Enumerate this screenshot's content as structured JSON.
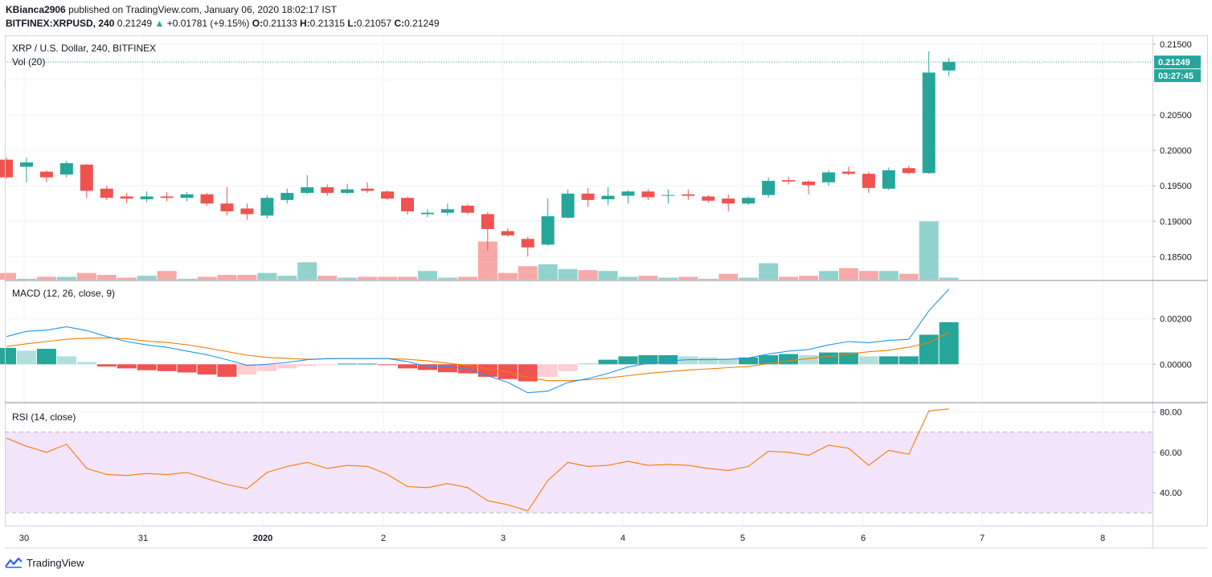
{
  "header": {
    "author": "KBianca2906",
    "published_text": "published on TradingView.com, January 06, 2020 18:02:17 IST",
    "symbol": "BITFINEX:XRPUSD, 240",
    "last": "0.21249",
    "change_arrow": "▲",
    "change": "+0.01781 (+9.15%)",
    "open_label": "O:",
    "open": "0.21133",
    "high_label": "H:",
    "high": "0.21315",
    "low_label": "L:",
    "low": "0.21057",
    "close_label": "C:",
    "close": "0.21249"
  },
  "footer": {
    "brand": "TradingView"
  },
  "colors": {
    "up": "#26a69a",
    "down": "#ef5350",
    "grid": "#f0f3fa",
    "rsi_band": "#f3e5fc",
    "macd_line": "#2196f3",
    "signal_line": "#f57c00"
  },
  "chart_data": [
    {
      "type": "candlestick",
      "title": "XRP / U.S. Dollar, 240, BITFINEX",
      "volume_label": "Vol (20)",
      "ylim": [
        0.1822,
        0.2158
      ],
      "y_ticks": [
        "0.21500",
        "0.20500",
        "0.20000",
        "0.19500",
        "0.19000",
        "0.18500"
      ],
      "y_tick_values": [
        0.215,
        0.205,
        0.2,
        0.195,
        0.19,
        0.185
      ],
      "last_price_label": "0.21249",
      "countdown_label": "03:27:45",
      "x_labels": [
        "30",
        "31",
        "2020",
        "2",
        "3",
        "4",
        "5",
        "6",
        "7",
        "8"
      ],
      "ohlc": [
        [
          0.1987,
          0.199,
          0.196,
          0.1962
        ],
        [
          0.1977,
          0.199,
          0.1955,
          0.1983
        ],
        [
          0.197,
          0.1972,
          0.1955,
          0.1962
        ],
        [
          0.1966,
          0.1985,
          0.1962,
          0.1982
        ],
        [
          0.198,
          0.1981,
          0.1933,
          0.1943
        ],
        [
          0.1946,
          0.195,
          0.193,
          0.1933
        ],
        [
          0.1935,
          0.194,
          0.1925,
          0.1932
        ],
        [
          0.1931,
          0.1942,
          0.1927,
          0.1935
        ],
        [
          0.1935,
          0.1941,
          0.1928,
          0.1933
        ],
        [
          0.1933,
          0.1941,
          0.1928,
          0.1938
        ],
        [
          0.1938,
          0.194,
          0.1922,
          0.1925
        ],
        [
          0.1925,
          0.1948,
          0.1908,
          0.1914
        ],
        [
          0.1918,
          0.1925,
          0.1902,
          0.191
        ],
        [
          0.1908,
          0.1937,
          0.1904,
          0.1933
        ],
        [
          0.193,
          0.1946,
          0.1925,
          0.194
        ],
        [
          0.194,
          0.1965,
          0.1938,
          0.1948
        ],
        [
          0.1948,
          0.1952,
          0.1936,
          0.194
        ],
        [
          0.194,
          0.1953,
          0.1938,
          0.1945
        ],
        [
          0.1946,
          0.1955,
          0.194,
          0.1943
        ],
        [
          0.1942,
          0.1944,
          0.193,
          0.1932
        ],
        [
          0.1933,
          0.1935,
          0.1909,
          0.1914
        ],
        [
          0.191,
          0.1917,
          0.1906,
          0.1912
        ],
        [
          0.1912,
          0.1925,
          0.1908,
          0.1917
        ],
        [
          0.1922,
          0.1924,
          0.191,
          0.1912
        ],
        [
          0.191,
          0.1913,
          0.1858,
          0.1889
        ],
        [
          0.1886,
          0.189,
          0.1878,
          0.188
        ],
        [
          0.1875,
          0.1878,
          0.185,
          0.1863
        ],
        [
          0.1867,
          0.1932,
          0.1865,
          0.1907
        ],
        [
          0.1905,
          0.1945,
          0.1904,
          0.1939
        ],
        [
          0.1939,
          0.1947,
          0.192,
          0.193
        ],
        [
          0.1931,
          0.1948,
          0.1923,
          0.1936
        ],
        [
          0.1936,
          0.1944,
          0.1925,
          0.1942
        ],
        [
          0.1942,
          0.1945,
          0.193,
          0.1934
        ],
        [
          0.1936,
          0.1945,
          0.1925,
          0.1937
        ],
        [
          0.1938,
          0.1945,
          0.193,
          0.1936
        ],
        [
          0.1935,
          0.1937,
          0.1926,
          0.1929
        ],
        [
          0.1932,
          0.1938,
          0.1914,
          0.1925
        ],
        [
          0.1925,
          0.1935,
          0.1923,
          0.1933
        ],
        [
          0.1937,
          0.1962,
          0.1933,
          0.1957
        ],
        [
          0.1958,
          0.1963,
          0.1952,
          0.1956
        ],
        [
          0.1956,
          0.1958,
          0.1938,
          0.1951
        ],
        [
          0.1955,
          0.1972,
          0.195,
          0.1969
        ],
        [
          0.197,
          0.1977,
          0.1965,
          0.1967
        ],
        [
          0.1967,
          0.197,
          0.194,
          0.1947
        ],
        [
          0.1946,
          0.1976,
          0.1944,
          0.1972
        ],
        [
          0.1975,
          0.1978,
          0.1966,
          0.1968
        ],
        [
          0.1968,
          0.214,
          0.1967,
          0.211
        ],
        [
          0.2113,
          0.2131,
          0.2105,
          0.2125
        ]
      ],
      "volume_relative": [
        0.31,
        0.04,
        0.13,
        0.13,
        0.31,
        0.22,
        0.09,
        0.18,
        0.4,
        0.04,
        0.13,
        0.22,
        0.22,
        0.31,
        0.18,
        0.8,
        0.18,
        0.09,
        0.13,
        0.13,
        0.13,
        0.4,
        0.09,
        0.13,
        1.76,
        0.31,
        0.62,
        0.71,
        0.49,
        0.44,
        0.4,
        0.13,
        0.18,
        0.09,
        0.13,
        0.04,
        0.27,
        0.09,
        0.76,
        0.13,
        0.18,
        0.4,
        0.53,
        0.4,
        0.4,
        0.27,
        2.69,
        0.09
      ]
    },
    {
      "type": "macd",
      "title": "MACD (12, 26, close, 9)",
      "ylim": [
        -0.00165,
        0.00365
      ],
      "y_ticks": [
        "0.00200",
        "0.00000"
      ],
      "y_tick_values": [
        0.002,
        0.0
      ],
      "macd": [
        0.00122,
        0.00145,
        0.0015,
        0.00165,
        0.00148,
        0.00122,
        0.001,
        0.00085,
        0.00075,
        0.00058,
        0.00042,
        0.0002,
        -5e-05,
        0.0,
        8e-05,
        0.0002,
        0.00025,
        0.00025,
        0.00025,
        0.00025,
        0.00012,
        -0.0001,
        -0.0001,
        -0.00022,
        -0.0005,
        -0.0008,
        -0.00125,
        -0.00118,
        -0.0008,
        -0.00063,
        -0.0004,
        -0.00012,
        5e-05,
        0.00015,
        0.0002,
        0.0002,
        0.00022,
        0.00028,
        0.00045,
        0.00058,
        0.00065,
        0.00085,
        0.001,
        0.00095,
        0.00105,
        0.0011,
        0.00235,
        0.0033
      ],
      "signal": [
        0.00078,
        0.0009,
        0.001,
        0.0011,
        0.00115,
        0.00116,
        0.00112,
        0.00102,
        0.00096,
        0.00086,
        0.00072,
        0.00056,
        0.0004,
        0.0003,
        0.00026,
        0.00022,
        0.00024,
        0.00025,
        0.00025,
        0.00025,
        0.00022,
        0.00015,
        5e-05,
        -5e-05,
        -0.0002,
        -0.00035,
        -0.00058,
        -0.00072,
        -0.00072,
        -0.00068,
        -0.0006,
        -0.0005,
        -0.0004,
        -0.00032,
        -0.00025,
        -0.0002,
        -0.00015,
        -0.0001,
        3e-05,
        0.00015,
        0.00025,
        0.00035,
        0.00045,
        0.00055,
        0.00062,
        0.00075,
        0.00095,
        0.0014
      ],
      "histogram": [
        0.00072,
        0.0006,
        0.00068,
        0.00035,
        0.0001,
        -0.0001,
        -0.00018,
        -0.00026,
        -0.0003,
        -0.00036,
        -0.00045,
        -0.00055,
        -0.00045,
        -0.0003,
        -0.00018,
        -8e-05,
        -3e-05,
        3e-05,
        3e-05,
        -3e-05,
        -0.00018,
        -0.00025,
        -0.00035,
        -0.0004,
        -0.00055,
        -0.00065,
        -0.00075,
        -0.00055,
        -0.0003,
        5e-05,
        0.0002,
        0.00035,
        0.0004,
        0.0004,
        0.00035,
        0.0003,
        0.00025,
        0.0003,
        0.0004,
        0.00045,
        0.0004,
        0.00052,
        0.00052,
        0.00035,
        0.00035,
        0.00035,
        0.0013,
        0.00185
      ]
    },
    {
      "type": "rsi",
      "title": "RSI (14, close)",
      "ylim": [
        23.7,
        84.2
      ],
      "band": [
        30,
        70
      ],
      "y_ticks": [
        "80.00",
        "60.00",
        "40.00"
      ],
      "y_tick_values": [
        80,
        60,
        40
      ],
      "values": [
        67,
        63,
        60,
        64,
        52,
        49,
        48.5,
        49.5,
        49,
        50,
        47,
        44,
        42,
        50,
        53,
        55,
        52,
        53.5,
        53,
        49,
        43,
        42.5,
        44.5,
        42.5,
        36,
        34,
        31,
        46,
        55,
        53,
        53.5,
        55.5,
        53.5,
        54,
        53.5,
        52,
        51,
        53,
        60.5,
        60,
        58.5,
        63.5,
        62,
        53.5,
        61,
        59,
        80.5,
        81.5
      ]
    }
  ]
}
